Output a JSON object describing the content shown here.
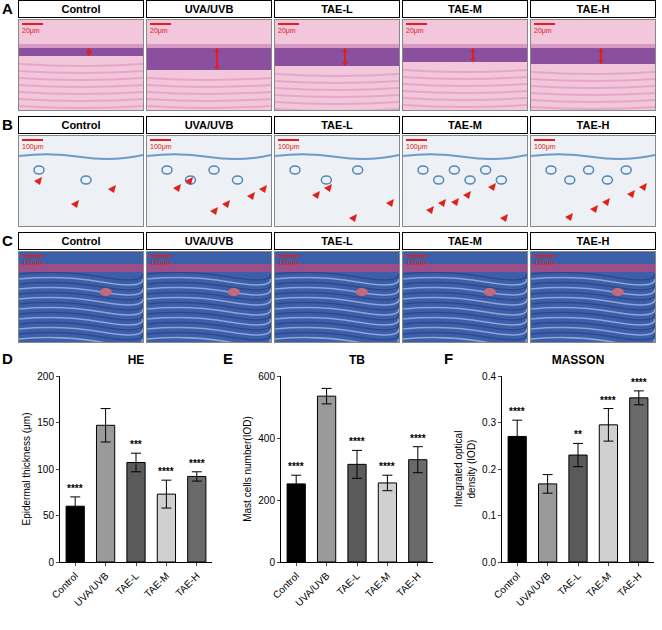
{
  "image_panels": [
    {
      "letter": "A",
      "scale_bar": "20μm",
      "labels": [
        "Control",
        "UVA/UVB",
        "TAE-L",
        "TAE-M",
        "TAE-H"
      ]
    },
    {
      "letter": "B",
      "scale_bar": "100μm",
      "labels": [
        "Control",
        "UVA/UVB",
        "TAE-L",
        "TAE-M",
        "TAE-H"
      ]
    },
    {
      "letter": "C",
      "scale_bar": "100μm",
      "labels": [
        "Control",
        "UVA/UVB",
        "TAE-L",
        "TAE-M",
        "TAE-H"
      ]
    }
  ],
  "chart_data": [
    {
      "type": "bar",
      "letter": "D",
      "title": "HE",
      "y_label": "Epidermal thickness (μm)",
      "categories": [
        "Control",
        "UVA/UVB",
        "TAE-L",
        "TAE-M",
        "TAE-H"
      ],
      "values": [
        60,
        147,
        107,
        73,
        92
      ],
      "error": [
        10,
        18,
        10,
        15,
        5
      ],
      "significance": [
        "****",
        null,
        "***",
        "****",
        "****"
      ],
      "colors": [
        "#000000",
        "#9a9a9a",
        "#5a5a5a",
        "#d0d0d0",
        "#6a6a6a"
      ],
      "ylim": [
        0,
        200
      ],
      "yticks": [
        0,
        50,
        100,
        150,
        200
      ],
      "grid": false
    },
    {
      "type": "bar",
      "letter": "E",
      "title": "TB",
      "y_label": "Mast cells number(IOD)",
      "categories": [
        "Control",
        "UVA/UVB",
        "TAE-L",
        "TAE-M",
        "TAE-H"
      ],
      "values": [
        252,
        535,
        315,
        255,
        330
      ],
      "error": [
        28,
        25,
        45,
        25,
        42
      ],
      "significance": [
        "****",
        null,
        "****",
        "****",
        "****"
      ],
      "colors": [
        "#000000",
        "#9a9a9a",
        "#5a5a5a",
        "#d0d0d0",
        "#6a6a6a"
      ],
      "ylim": [
        0,
        600
      ],
      "yticks": [
        0,
        200,
        400,
        600
      ],
      "grid": false
    },
    {
      "type": "bar",
      "letter": "F",
      "title": "MASSON",
      "y_label": "Integrated optical density (IOD)",
      "categories": [
        "Control",
        "UVA/UVB",
        "TAE-L",
        "TAE-M",
        "TAE-H"
      ],
      "values": [
        0.27,
        0.168,
        0.23,
        0.295,
        0.353
      ],
      "error": [
        0.035,
        0.02,
        0.025,
        0.035,
        0.015
      ],
      "significance": [
        "****",
        null,
        "**",
        "****",
        "****"
      ],
      "colors": [
        "#000000",
        "#9a9a9a",
        "#5a5a5a",
        "#d0d0d0",
        "#6a6a6a"
      ],
      "ylim": [
        0,
        0.4
      ],
      "yticks": [
        {
          "value": 0,
          "label": "0.0"
        },
        0.1,
        0.2,
        0.3,
        0.4
      ],
      "grid": false
    }
  ]
}
